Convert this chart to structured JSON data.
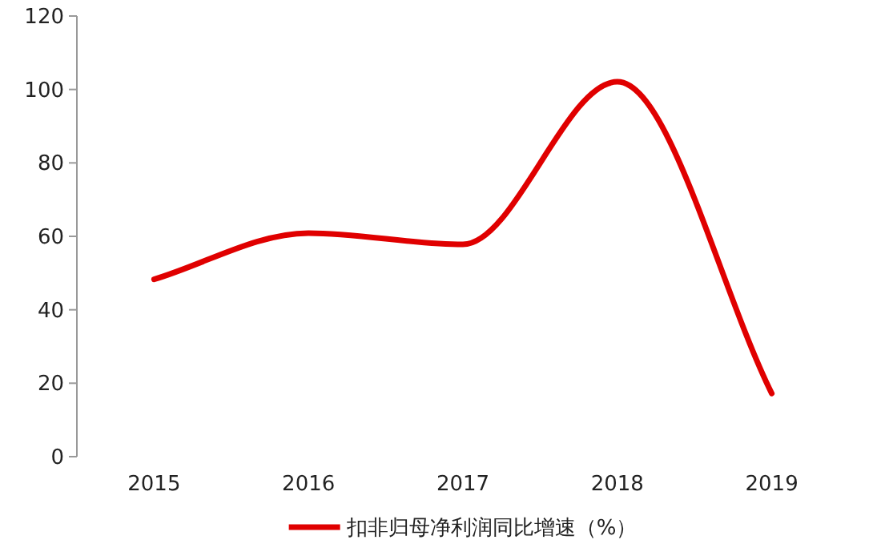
{
  "chart_data": {
    "type": "line",
    "categories": [
      "2015",
      "2016",
      "2017",
      "2018",
      "2019"
    ],
    "series": [
      {
        "name": "扣非归母净利润同比增速（%）",
        "color": "#e00000",
        "values": [
          48.3,
          60.9,
          57.8,
          102.1,
          17.2
        ]
      }
    ],
    "ylim": [
      0,
      120
    ],
    "yticks": [
      0,
      20,
      40,
      60,
      80,
      100,
      120
    ],
    "grid": false,
    "legend": "bottom",
    "marker": "none",
    "line_style": "solid"
  }
}
